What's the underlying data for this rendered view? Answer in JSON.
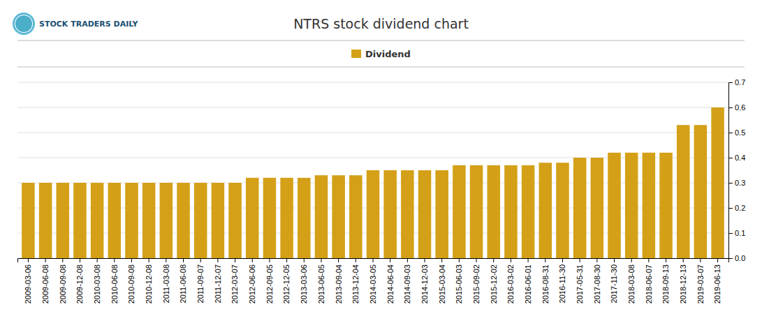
{
  "chart_data": {
    "type": "bar",
    "title": "NTRS stock dividend chart",
    "annotations": [
      "STOCK TRADERS DAILY"
    ],
    "categories": [
      "2009-03-06",
      "2009-06-08",
      "2009-09-08",
      "2009-12-08",
      "2010-03-08",
      "2010-06-08",
      "2010-09-08",
      "2010-12-08",
      "2011-03-08",
      "2011-06-08",
      "2011-09-07",
      "2011-12-07",
      "2012-03-07",
      "2012-06-06",
      "2012-09-05",
      "2012-12-05",
      "2013-03-06",
      "2013-06-05",
      "2013-09-04",
      "2013-12-04",
      "2014-03-05",
      "2014-06-04",
      "2014-09-03",
      "2014-12-03",
      "2015-03-04",
      "2015-06-03",
      "2015-09-02",
      "2015-12-02",
      "2016-03-02",
      "2016-06-01",
      "2016-08-31",
      "2016-11-30",
      "2017-05-31",
      "2017-08-30",
      "2017-11-30",
      "2018-03-08",
      "2018-06-07",
      "2018-09-13",
      "2018-12-13",
      "2019-03-07",
      "2019-06-13"
    ],
    "series": [
      {
        "name": "Dividend",
        "color": "#D4A017",
        "values": [
          0.3,
          0.3,
          0.3,
          0.3,
          0.3,
          0.3,
          0.3,
          0.3,
          0.3,
          0.3,
          0.3,
          0.3,
          0.3,
          0.32,
          0.32,
          0.32,
          0.32,
          0.33,
          0.33,
          0.33,
          0.35,
          0.35,
          0.35,
          0.35,
          0.35,
          0.37,
          0.37,
          0.37,
          0.37,
          0.37,
          0.38,
          0.38,
          0.4,
          0.4,
          0.42,
          0.42,
          0.42,
          0.42,
          0.53,
          0.53,
          0.6
        ]
      }
    ],
    "ylim": [
      0,
      0.7
    ],
    "yticks": [
      {
        "value": 0,
        "label": "0.0"
      },
      0.1,
      0.2,
      0.3,
      0.4,
      0.5,
      0.6,
      0.7
    ],
    "grid": true,
    "legend": "top"
  }
}
